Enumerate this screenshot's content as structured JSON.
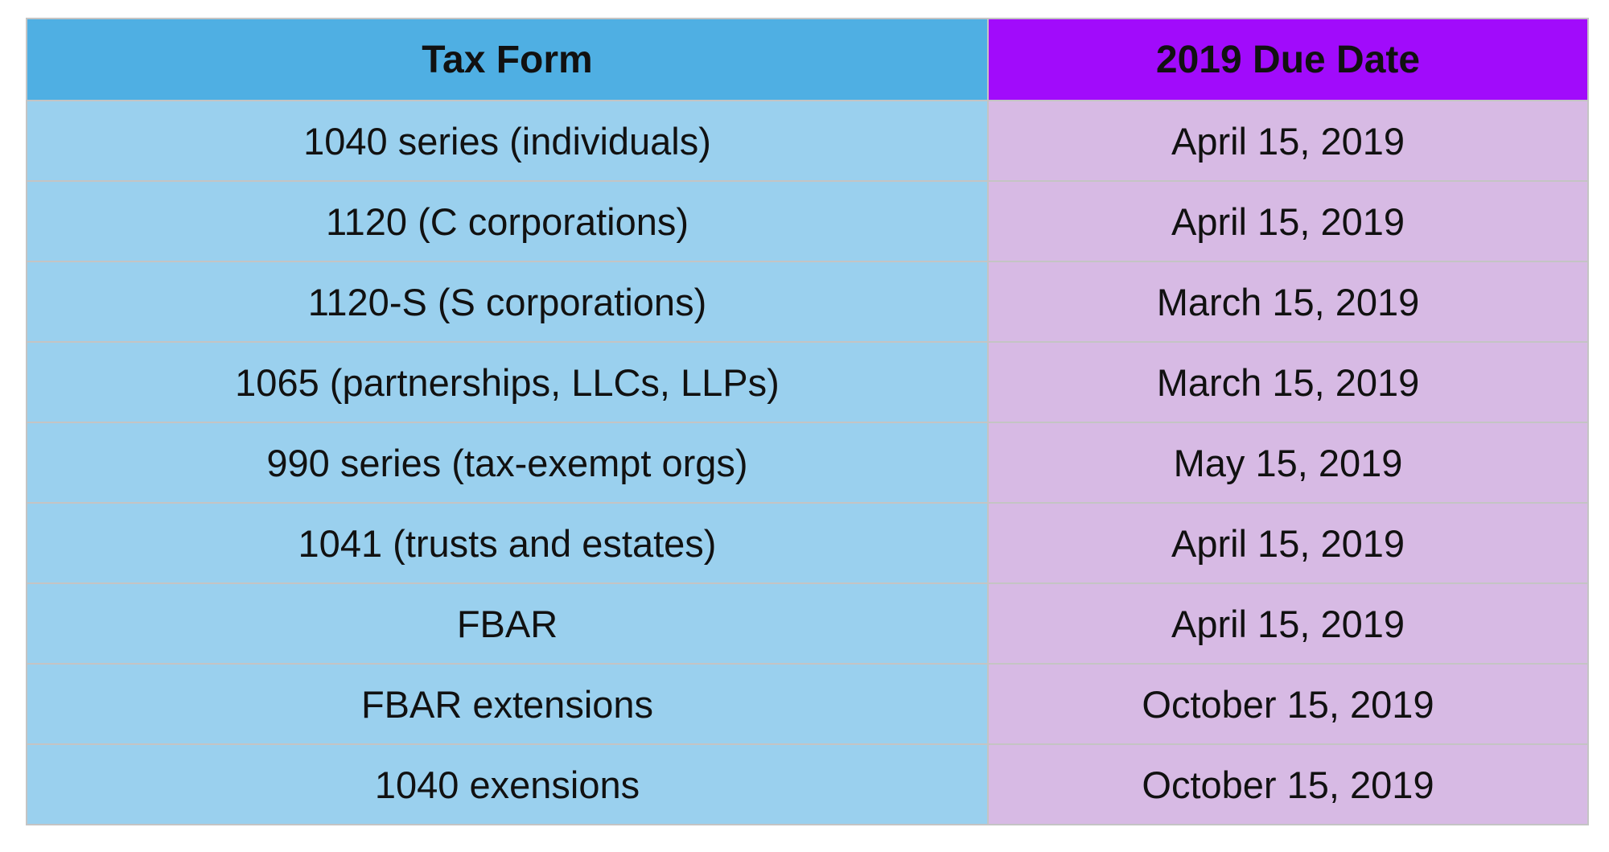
{
  "table": {
    "header": [
      "Tax Form",
      "2019 Due Date"
    ],
    "rows": [
      [
        "1040 series (individuals)",
        "April 15, 2019"
      ],
      [
        "1120 (C corporations)",
        "April 15, 2019"
      ],
      [
        "1120-S (S corporations)",
        "March 15, 2019"
      ],
      [
        "1065 (partnerships, LLCs, LLPs)",
        "March 15, 2019"
      ],
      [
        "990 series (tax-exempt orgs)",
        "May 15, 2019"
      ],
      [
        "1041 (trusts and estates)",
        "April 15, 2019"
      ],
      [
        "FBAR",
        "April 15, 2019"
      ],
      [
        "FBAR extensions",
        "October 15, 2019"
      ],
      [
        "1040 exensions",
        "October 15, 2019"
      ]
    ]
  }
}
